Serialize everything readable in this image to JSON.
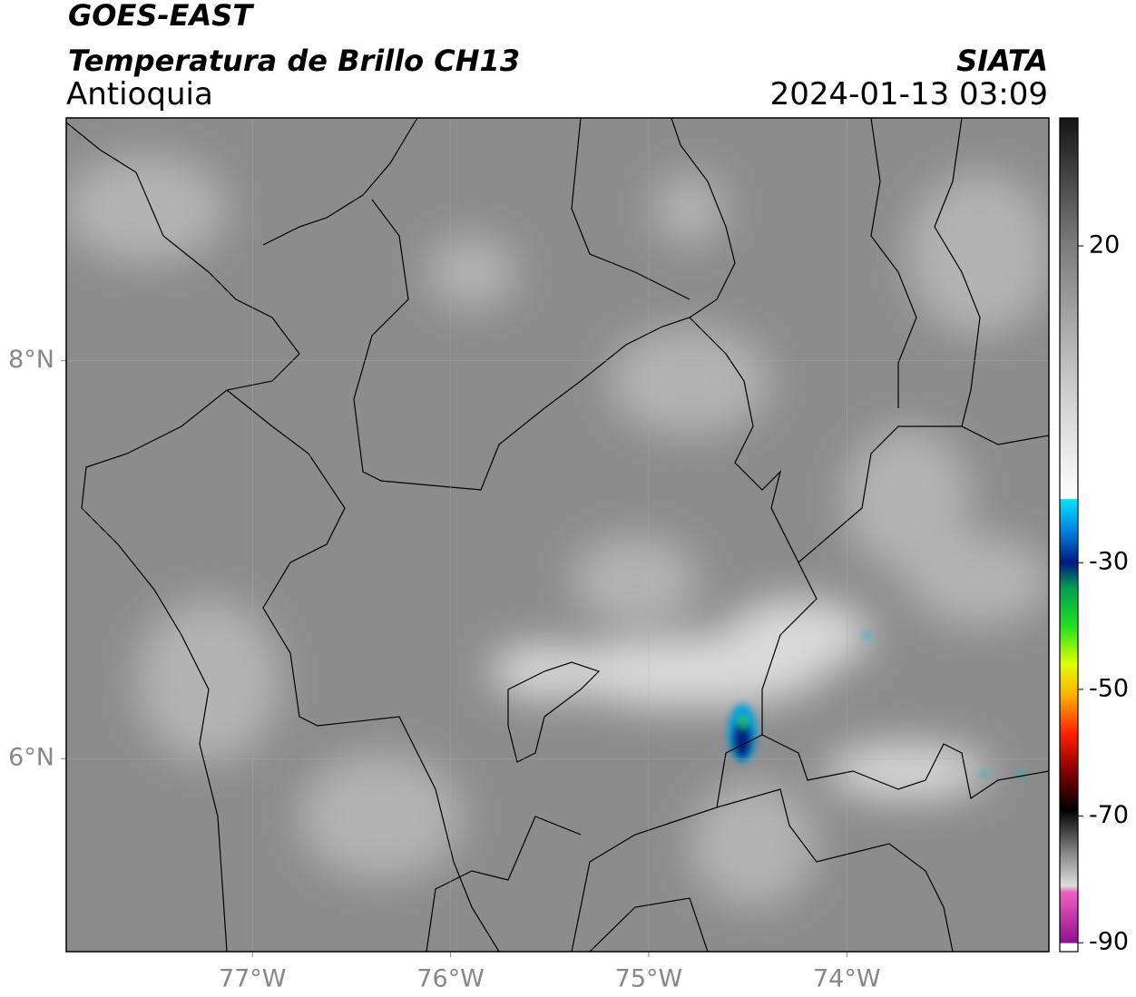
{
  "header": {
    "satellite": "GOES-EAST",
    "product": "Temperatura de Brillo CH13",
    "region": "Antioquia",
    "source": "SIATA",
    "datetime": "2024-01-13 03:09"
  },
  "map": {
    "xlim": [
      -77.94,
      -72.98
    ],
    "ylim": [
      5.03,
      9.22
    ],
    "xticks": [
      {
        "value": -77,
        "label": "77°W"
      },
      {
        "value": -76,
        "label": "76°W"
      },
      {
        "value": -75,
        "label": "75°W"
      },
      {
        "value": -74,
        "label": "74°W"
      }
    ],
    "yticks": [
      {
        "value": 8,
        "label": "8°N"
      },
      {
        "value": 6,
        "label": "6°N"
      }
    ],
    "grid": true
  },
  "colorbar": {
    "lim": [
      -91.4,
      40.2
    ],
    "ticks": [
      20,
      -30,
      -50,
      -70,
      -90
    ],
    "colormap": [
      {
        "value": 40.2,
        "color": "#151515"
      },
      {
        "value": 30,
        "color": "#4a4a4a"
      },
      {
        "value": 20,
        "color": "#7c7c7c"
      },
      {
        "value": 0,
        "color": "#c4c4c4"
      },
      {
        "value": -19.9,
        "color": "#ffffff"
      },
      {
        "value": -20,
        "color": "#00e5ff"
      },
      {
        "value": -25,
        "color": "#0080e0"
      },
      {
        "value": -30,
        "color": "#001a80"
      },
      {
        "value": -34,
        "color": "#00a050"
      },
      {
        "value": -40,
        "color": "#20e020"
      },
      {
        "value": -46,
        "color": "#e0ff00"
      },
      {
        "value": -51,
        "color": "#ffb000"
      },
      {
        "value": -57,
        "color": "#ff2000"
      },
      {
        "value": -63,
        "color": "#800000"
      },
      {
        "value": -69,
        "color": "#000000"
      },
      {
        "value": -76,
        "color": "#8a8a8a"
      },
      {
        "value": -81,
        "color": "#dddddd"
      },
      {
        "value": -82,
        "color": "#f060c0"
      },
      {
        "value": -90,
        "color": "#901090"
      },
      {
        "value": -90.1,
        "color": "#ffffff"
      },
      {
        "value": -91.4,
        "color": "#ffffff"
      }
    ]
  }
}
